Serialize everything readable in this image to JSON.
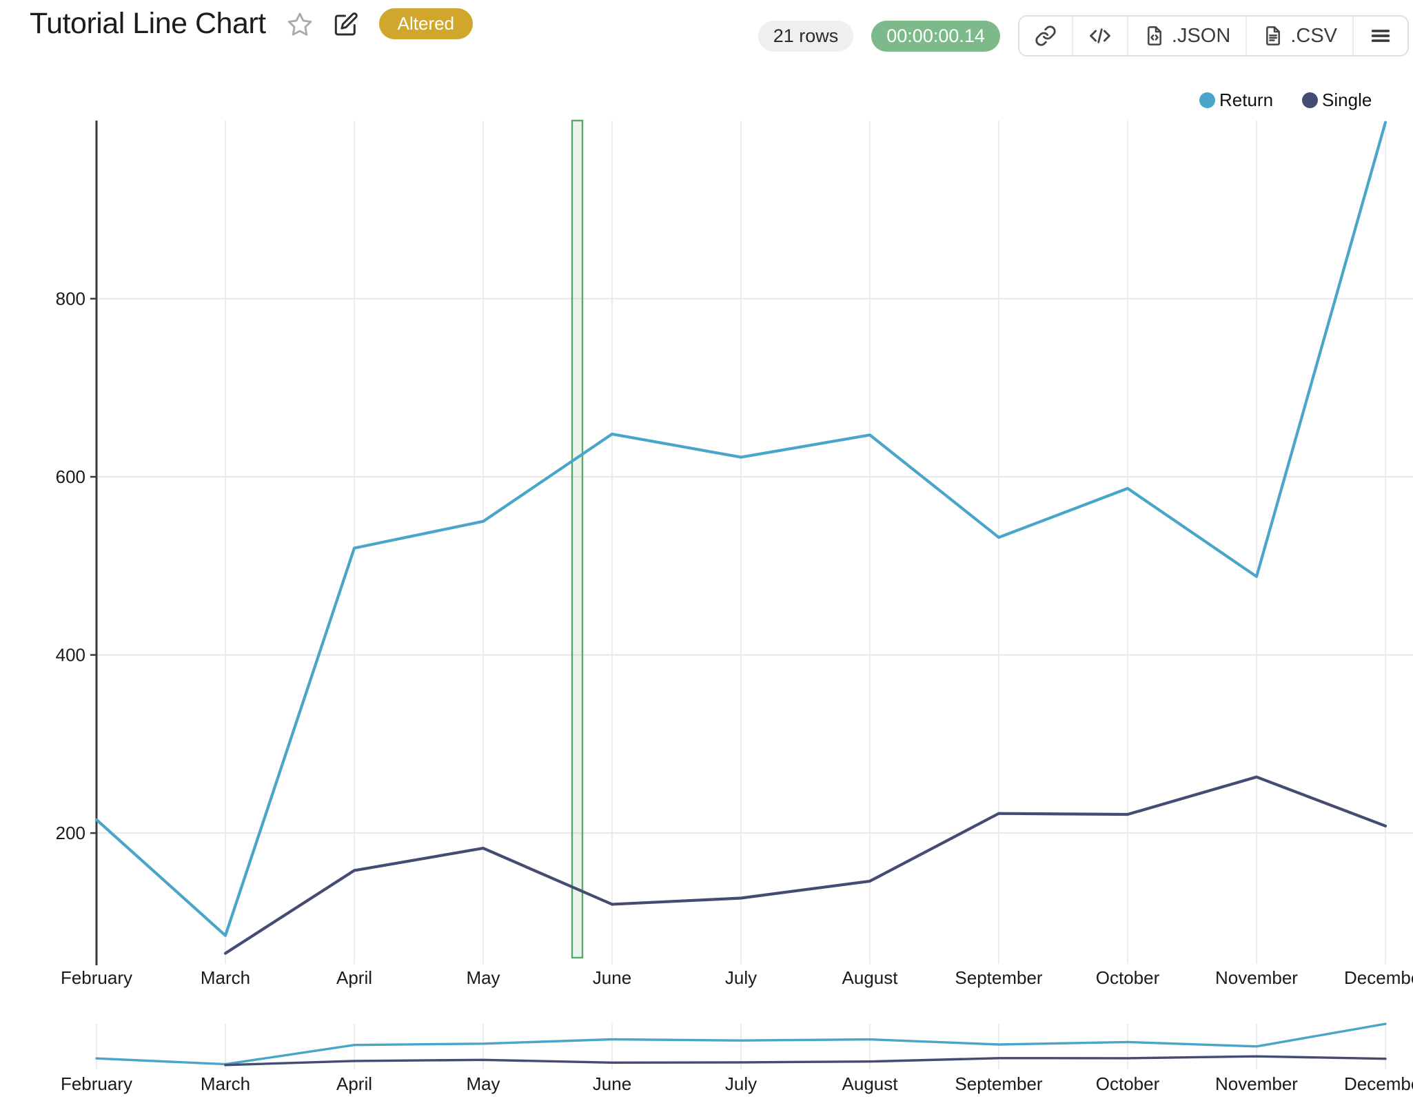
{
  "header": {
    "title": "Tutorial Line Chart",
    "status_badge": "Altered",
    "rows_badge": "21 rows",
    "timer_badge": "00:00:00.14",
    "buttons": {
      "json_label": ".JSON",
      "csv_label": ".CSV"
    },
    "icons": [
      "star-icon",
      "edit-icon",
      "link-icon",
      "code-icon",
      "json-file-icon",
      "csv-file-icon",
      "menu-icon"
    ]
  },
  "colors": {
    "return_series": "#4aa6c9",
    "single_series": "#454c74",
    "status_badge_bg": "#d0a72c",
    "timer_badge_bg": "#7cba8b",
    "rows_badge_bg": "#efefef",
    "highlight_band_stroke": "#5ba86b",
    "highlight_band_fill": "rgba(91,168,107,0.13)",
    "gridline": "#e8e8e8",
    "axis": "#3a3a3a",
    "tick_text": "#1a1a1a"
  },
  "legend": [
    {
      "label": "Return",
      "color": "#4aa6c9"
    },
    {
      "label": "Single",
      "color": "#454c74"
    }
  ],
  "chart_data": {
    "type": "line",
    "title": "Tutorial Line Chart",
    "x_categories": [
      "February",
      "March",
      "April",
      "May",
      "June",
      "July",
      "August",
      "September",
      "October",
      "November",
      "December"
    ],
    "series": [
      {
        "name": "Return",
        "color": "#4aa6c9",
        "values": [
          215,
          85,
          520,
          550,
          648,
          622,
          647,
          532,
          587,
          488,
          998
        ]
      },
      {
        "name": "Single",
        "color": "#454c74",
        "values": [
          null,
          65,
          158,
          183,
          120,
          127,
          146,
          222,
          221,
          263,
          208
        ]
      }
    ],
    "yticks": [
      200,
      400,
      600,
      800
    ],
    "ylim": [
      50,
      1000
    ],
    "grid": true,
    "legend_position": "top-right",
    "highlight_band": {
      "between": [
        "May",
        "June"
      ],
      "offset_fraction": 0.73
    },
    "context_chart": {
      "shows": "same series, compressed",
      "x_categories_repeated": true
    }
  }
}
